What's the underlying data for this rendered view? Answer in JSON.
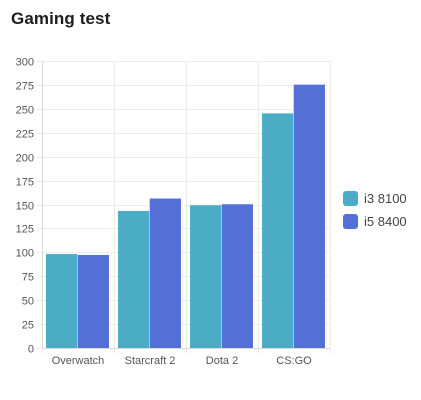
{
  "chart_data": {
    "type": "bar",
    "title": "Gaming test",
    "categories": [
      "Overwatch",
      "Starcraft 2",
      "Dota 2",
      "CS:GO"
    ],
    "series": [
      {
        "name": "i3 8100",
        "color": "#4bacc6",
        "values": [
          98,
          143,
          149,
          245
        ]
      },
      {
        "name": "i5 8400",
        "color": "#5470d6",
        "values": [
          97,
          156,
          150,
          275
        ]
      }
    ],
    "ylim": [
      0,
      300
    ],
    "yticks": [
      0,
      25,
      50,
      75,
      100,
      125,
      150,
      175,
      200,
      225,
      250,
      275,
      300
    ],
    "grid": true,
    "legend": "right"
  }
}
